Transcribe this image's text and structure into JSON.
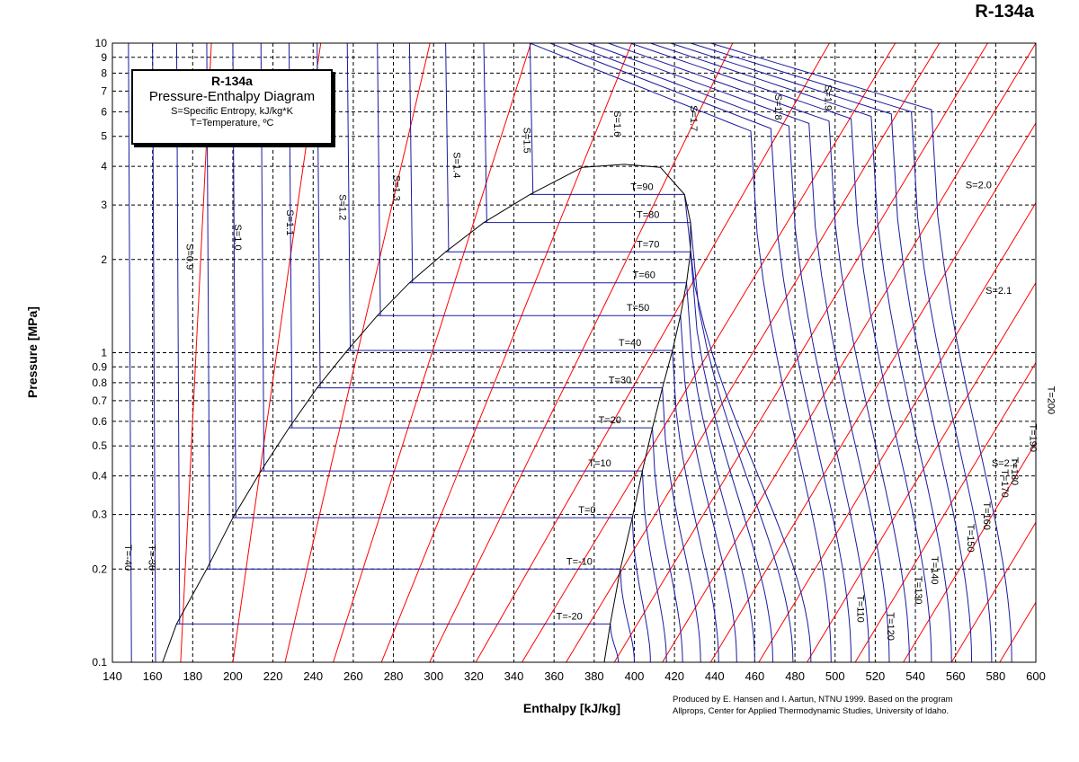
{
  "chart_data": {
    "type": "line",
    "title": "R-134a",
    "xlabel": "Enthalpy [kJ/kg]",
    "ylabel": "Pressure [MPa]",
    "xlim": [
      140,
      600
    ],
    "ylim": [
      0.1,
      10
    ],
    "yscale": "log",
    "grid": true,
    "x_ticks": [
      140,
      160,
      180,
      200,
      220,
      240,
      260,
      280,
      300,
      320,
      340,
      360,
      380,
      400,
      420,
      440,
      460,
      480,
      500,
      520,
      540,
      560,
      580,
      600
    ],
    "y_ticks": [
      0.1,
      0.2,
      0.3,
      0.4,
      0.5,
      0.6,
      0.7,
      0.8,
      0.9,
      1,
      2,
      3,
      4,
      5,
      6,
      7,
      8,
      9,
      10
    ],
    "colors": {
      "isotherm": "#1a1aa0",
      "isentrope": "#ff0000",
      "saturation": "#000000",
      "grid": "#000000"
    },
    "legend_box": {
      "title": "R-134a",
      "subtitle": "Pressure-Enthalpy Diagram",
      "line1": "S=Specific Entropy, kJ/kg*K",
      "line2": "T=Temperature, ºC"
    },
    "saturation_dome": {
      "liquid": [
        [
          165,
          0.1
        ],
        [
          172,
          0.133
        ],
        [
          187,
          0.2
        ],
        [
          200,
          0.293
        ],
        [
          214,
          0.415
        ],
        [
          228,
          0.572
        ],
        [
          242,
          0.77
        ],
        [
          257,
          1.017
        ],
        [
          272,
          1.318
        ],
        [
          288,
          1.682
        ],
        [
          306,
          2.117
        ],
        [
          325,
          2.633
        ],
        [
          348,
          3.244
        ],
        [
          374,
          3.97
        ],
        [
          395,
          4.06
        ]
      ],
      "vapor": [
        [
          385,
          0.1
        ],
        [
          388,
          0.133
        ],
        [
          393,
          0.2
        ],
        [
          399,
          0.293
        ],
        [
          404,
          0.415
        ],
        [
          409,
          0.572
        ],
        [
          414,
          0.77
        ],
        [
          419,
          1.017
        ],
        [
          423,
          1.318
        ],
        [
          426,
          1.682
        ],
        [
          428,
          2.117
        ],
        [
          428,
          2.633
        ],
        [
          425,
          3.244
        ],
        [
          413,
          3.97
        ],
        [
          395,
          4.06
        ]
      ]
    },
    "isotherm_labels": [
      "T=-40",
      "T=-30",
      "T=-20",
      "T=-10",
      "T=0",
      "T=10",
      "T=20",
      "T=30",
      "T=40",
      "T=50",
      "T=60",
      "T=70",
      "T=80",
      "T=90",
      "T=110",
      "T=120",
      "T=130",
      "T=140",
      "T=150",
      "T=160",
      "T=170",
      "T=180",
      "T=190",
      "T=200"
    ],
    "isotherms_two_phase": [
      {
        "label": "T=-20",
        "p": 0.133,
        "h_liq": 172,
        "h_vap": 388
      },
      {
        "label": "T=-10",
        "p": 0.2,
        "h_liq": 187,
        "h_vap": 393
      },
      {
        "label": "T=0",
        "p": 0.293,
        "h_liq": 200,
        "h_vap": 399
      },
      {
        "label": "T=10",
        "p": 0.415,
        "h_liq": 214,
        "h_vap": 404
      },
      {
        "label": "T=20",
        "p": 0.572,
        "h_liq": 228,
        "h_vap": 409
      },
      {
        "label": "T=30",
        "p": 0.77,
        "h_liq": 242,
        "h_vap": 414
      },
      {
        "label": "T=40",
        "p": 1.017,
        "h_liq": 257,
        "h_vap": 419
      },
      {
        "label": "T=50",
        "p": 1.318,
        "h_liq": 272,
        "h_vap": 423
      },
      {
        "label": "T=60",
        "p": 1.682,
        "h_liq": 288,
        "h_vap": 426
      },
      {
        "label": "T=70",
        "p": 2.117,
        "h_liq": 306,
        "h_vap": 428
      },
      {
        "label": "T=80",
        "p": 2.633,
        "h_liq": 325,
        "h_vap": 428
      },
      {
        "label": "T=90",
        "p": 3.244,
        "h_liq": 348,
        "h_vap": 425
      }
    ],
    "isotherms_liquid_h": [
      148,
      160,
      172,
      187,
      200,
      214,
      228,
      242,
      257,
      272,
      288,
      306,
      325,
      348
    ],
    "isotherms_vapor_end_h": [
      392,
      400,
      408,
      416,
      424,
      433,
      442,
      451,
      460,
      469,
      479,
      488,
      498,
      508,
      517,
      527,
      537,
      548,
      558,
      568,
      578,
      588
    ],
    "isentrope_labels": [
      "S=0.9",
      "S=1.0",
      "S=1.1",
      "S=1.2",
      "S=1.3",
      "S=1.4",
      "S=1.5",
      "S=1.6",
      "S=1.7",
      "S=1.8",
      "S=1.9",
      "S=2.0",
      "S=2.1",
      "S=2.2"
    ],
    "isentropes_h_at_0_1MPa": [
      174,
      200,
      226,
      250,
      274,
      298,
      321,
      344,
      366,
      390,
      414,
      438,
      462,
      486,
      510,
      534,
      558,
      582
    ]
  },
  "credit": {
    "line1": "Produced by E. Hansen and I. Aartun, NTNU 1999. Based on the program",
    "line2": "Allprops, Center for Applied Thermodynamic Studies, University of Idaho."
  }
}
